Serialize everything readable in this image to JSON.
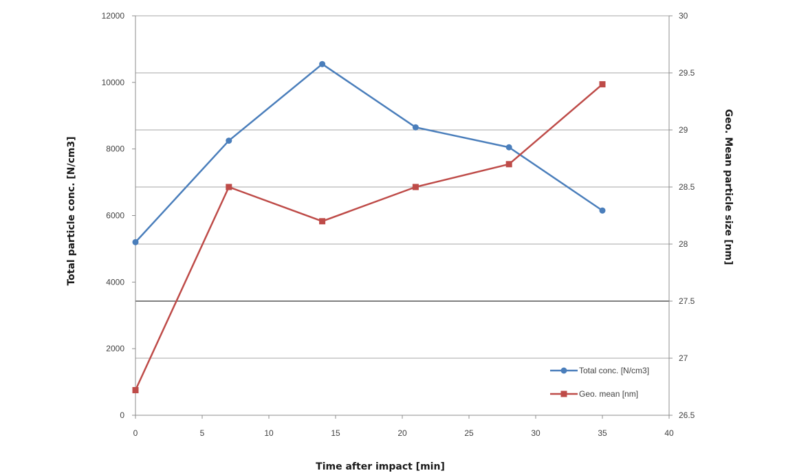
{
  "chart_data": {
    "type": "line",
    "xlabel": "Time after impact [min]",
    "ylabel_left": "Total particle conc. [N/cm3]",
    "ylabel_right": "Geo. Mean particle size [nm]",
    "xlim": [
      0,
      40
    ],
    "x_ticks": [
      "0",
      "5",
      "10",
      "15",
      "20",
      "25",
      "30",
      "35",
      "40"
    ],
    "ylim_left": [
      0,
      12000
    ],
    "y_ticks_left": [
      "0",
      "2000",
      "4000",
      "6000",
      "8000",
      "10000",
      "12000"
    ],
    "ylim_right": [
      26.5,
      30
    ],
    "y_ticks_right": [
      "26.5",
      "27",
      "27.5",
      "28",
      "28.5",
      "29",
      "29.5",
      "30"
    ],
    "grid": true,
    "legend_position": "bottom-right",
    "series": [
      {
        "name": "Total conc. [N/cm3]",
        "axis": "left",
        "color": "#4a7ebb",
        "marker": "circle",
        "x": [
          0,
          7,
          14,
          21,
          28,
          35
        ],
        "values": [
          5200,
          8250,
          10550,
          8650,
          8050,
          6150
        ]
      },
      {
        "name": "Geo. mean [nm]",
        "axis": "right",
        "color": "#be4b48",
        "marker": "square",
        "x": [
          0,
          7,
          14,
          21,
          28,
          35
        ],
        "values": [
          26.72,
          28.5,
          28.2,
          28.5,
          28.7,
          29.4
        ]
      }
    ]
  }
}
